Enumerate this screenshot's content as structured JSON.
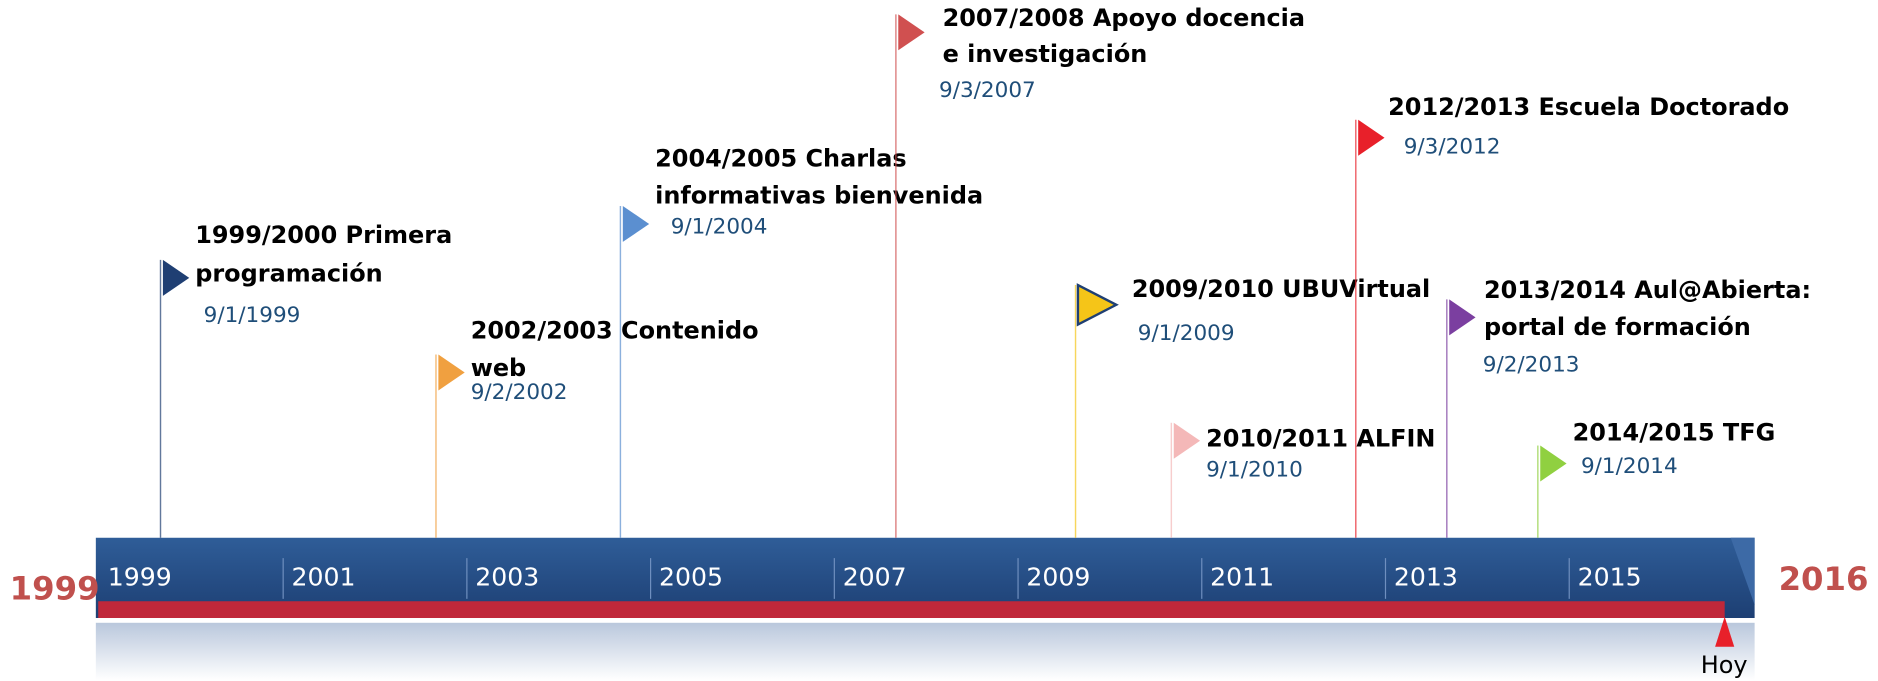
{
  "start_label": "1999",
  "end_label": "2016",
  "today_label": "Hoy",
  "years": [
    "1999",
    "2001",
    "2003",
    "2005",
    "2007",
    "2009",
    "2011",
    "2013",
    "2015"
  ],
  "events": [
    {
      "title": [
        "1999/2000 Primera",
        "programación"
      ],
      "date": "9/1/1999"
    },
    {
      "title": [
        "2002/2003 Contenido",
        "web"
      ],
      "date": "9/2/2002"
    },
    {
      "title": [
        "2004/2005 Charlas",
        "informativas bienvenida"
      ],
      "date": "9/1/2004"
    },
    {
      "title": [
        "2007/2008 Apoyo docencia",
        "e investigación"
      ],
      "date": "9/3/2007"
    },
    {
      "title": [
        "2009/2010 UBUVirtual"
      ],
      "date": "9/1/2009"
    },
    {
      "title": [
        "2010/2011 ALFIN"
      ],
      "date": "9/1/2010"
    },
    {
      "title": [
        "2012/2013 Escuela Doctorado"
      ],
      "date": "9/3/2012"
    },
    {
      "title": [
        "2013/2014 Aul@Abierta:",
        "portal de formación"
      ],
      "date": "9/2/2013"
    },
    {
      "title": [
        "2014/2015 TFG"
      ],
      "date": "9/1/2014"
    }
  ]
}
